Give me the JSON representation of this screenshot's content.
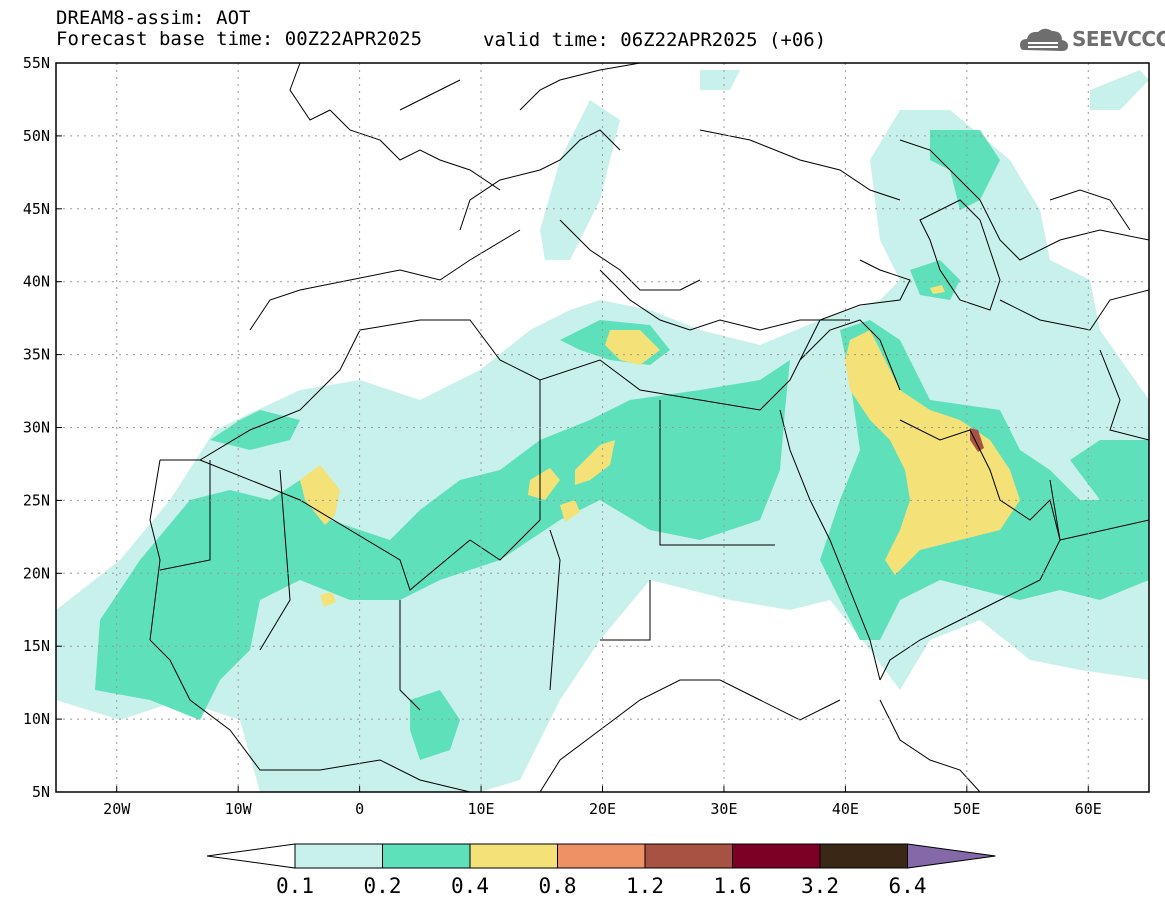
{
  "header": {
    "title": "DREAM8-assim: AOT",
    "base_time": "Forecast base time: 00Z22APR2025",
    "valid_time": "valid time: 06Z22APR2025 (+06)",
    "logo_text": "SEEVCCC"
  },
  "map": {
    "lat_range": [
      5,
      55
    ],
    "lon_range": [
      -25,
      65
    ],
    "lat_ticks": [
      "55N",
      "50N",
      "45N",
      "40N",
      "35N",
      "30N",
      "25N",
      "20N",
      "15N",
      "10N",
      "5N"
    ],
    "lon_ticks": [
      "20W",
      "10W",
      "0",
      "10E",
      "20E",
      "30E",
      "40E",
      "50E",
      "60E"
    ],
    "grid": "dotted"
  },
  "legend": {
    "levels": [
      "0.1",
      "0.2",
      "0.4",
      "0.8",
      "1.2",
      "1.6",
      "3.2",
      "6.4"
    ],
    "colors": [
      "#c7f1ea",
      "#5ee0bb",
      "#f4e279",
      "#ee9266",
      "#a85243",
      "#7c0025",
      "#3b2716",
      "#8468a8"
    ]
  }
}
